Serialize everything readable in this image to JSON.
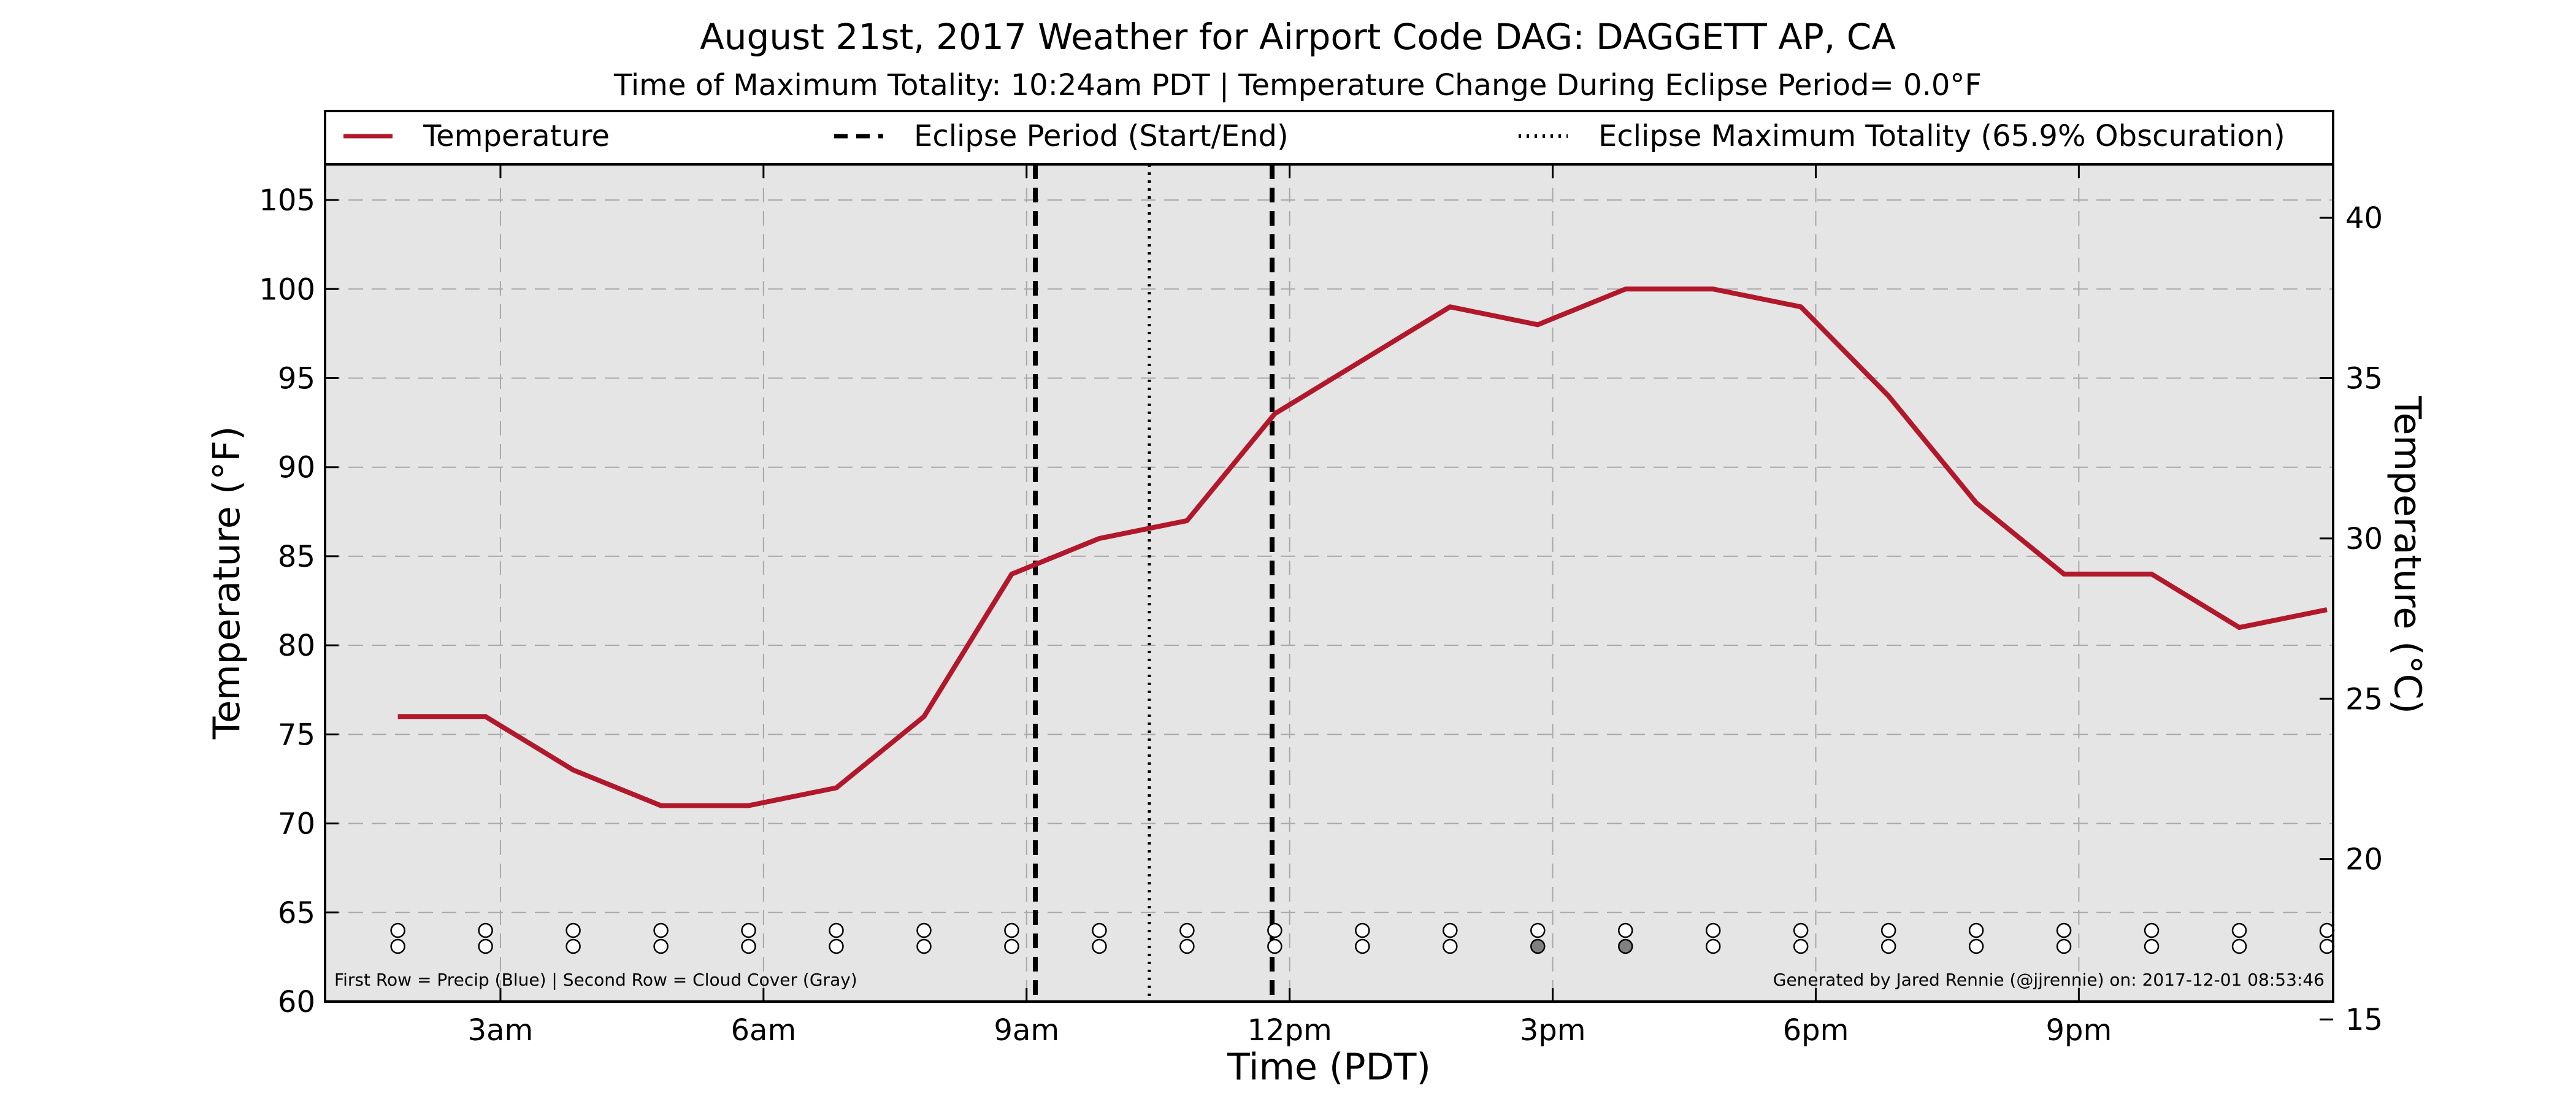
{
  "chart_data": {
    "type": "line",
    "title": "August 21st, 2017 Weather for Airport Code DAG: DAGGETT AP, CA",
    "subtitle": "Time of Maximum Totality: 10:24am PDT | Temperature Change During Eclipse Period= 0.0°F",
    "xlabel": "Time (PDT)",
    "ylabel": "Temperature (°F)",
    "ylabel_right": "Temperature (°C)",
    "x_ticks": [
      {
        "hour": 3,
        "label": "3am"
      },
      {
        "hour": 6,
        "label": "6am"
      },
      {
        "hour": 9,
        "label": "9am"
      },
      {
        "hour": 12,
        "label": "12pm"
      },
      {
        "hour": 15,
        "label": "3pm"
      },
      {
        "hour": 18,
        "label": "6pm"
      },
      {
        "hour": 21,
        "label": "9pm"
      }
    ],
    "xlim": [
      1.0,
      23.9
    ],
    "ylim": [
      60,
      107
    ],
    "y_ticks": [
      "60",
      "65",
      "70",
      "75",
      "80",
      "85",
      "90",
      "95",
      "100",
      "105"
    ],
    "y_right_ticks": [
      "15",
      "20",
      "25",
      "30",
      "35",
      "40"
    ],
    "y_right_lim": [
      15.556,
      41.667
    ],
    "grid": true,
    "series": [
      {
        "name": "Temperature",
        "color": "#b2182b",
        "x": [
          1.83,
          2.83,
          3.83,
          4.83,
          5.83,
          6.83,
          7.83,
          8.83,
          9.83,
          10.83,
          11.83,
          12.83,
          13.83,
          14.83,
          15.83,
          16.83,
          17.83,
          18.83,
          19.83,
          20.83,
          21.83,
          22.83,
          23.83
        ],
        "values": [
          76,
          76,
          73,
          71,
          71,
          72,
          76,
          84,
          86,
          87,
          93,
          96,
          99,
          98,
          100,
          100,
          99,
          94,
          88,
          84,
          84,
          81,
          82
        ]
      }
    ],
    "eclipse_start": 9.1,
    "eclipse_end": 11.8,
    "eclipse_max": 10.4,
    "legend": {
      "placement": "top",
      "entries": [
        {
          "label": "Temperature",
          "style": "solid",
          "color": "#b2182b"
        },
        {
          "label": "Eclipse Period (Start/End)",
          "style": "dashed",
          "color": "#000000"
        },
        {
          "label": "Eclipse Maximum Totality (65.9% Obscuration)",
          "style": "dotted",
          "color": "#000000"
        }
      ]
    },
    "precip_row": [
      0,
      0,
      0,
      0,
      0,
      0,
      0,
      0,
      0,
      0,
      0,
      0,
      0,
      0,
      0,
      0,
      0,
      0,
      0,
      0,
      0,
      0,
      0
    ],
    "cloud_row": [
      0,
      0,
      0,
      0,
      0,
      0,
      0,
      0,
      0,
      0,
      0,
      0,
      0,
      1,
      1,
      0,
      0,
      0,
      0,
      0,
      0,
      0,
      0
    ],
    "footnote_left": "First Row = Precip (Blue) | Second Row = Cloud Cover (Gray)",
    "footnote_right": "Generated by Jared Rennie (@jjrennie) on: 2017-12-01 08:53:46",
    "colors": {
      "plot_bg": "#e5e5e5",
      "grid": "#a8a8a8",
      "line": "#b2182b",
      "cloud_filled": "#808080"
    }
  }
}
